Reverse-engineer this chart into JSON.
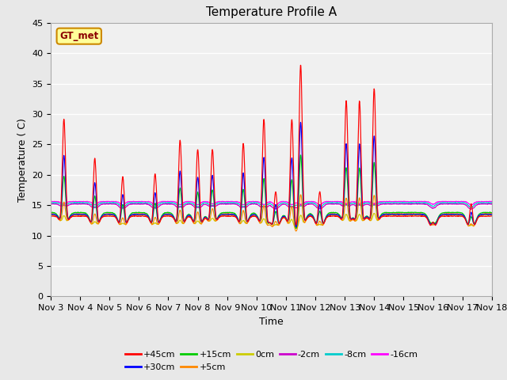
{
  "title": "Temperature Profile A",
  "xlabel": "Time",
  "ylabel": "Temperature (C)",
  "ylim": [
    0,
    45
  ],
  "series_labels": [
    "+45cm",
    "+30cm",
    "+15cm",
    "+5cm",
    "0cm",
    "-2cm",
    "-8cm",
    "-16cm"
  ],
  "series_colors": [
    "#ff0000",
    "#0000ff",
    "#00cc00",
    "#ff8800",
    "#cccc00",
    "#cc00cc",
    "#00cccc",
    "#ff00ff"
  ],
  "background_color": "#e8e8e8",
  "plot_bg_color": "#f0f0f0",
  "xtick_labels": [
    "Nov 3",
    "Nov 4",
    "Nov 5",
    "Nov 6",
    "Nov 7",
    "Nov 8",
    "Nov 9",
    "Nov 10",
    "Nov 11",
    "Nov 12",
    "Nov 13",
    "Nov 14",
    "Nov 15",
    "Nov 16",
    "Nov 17",
    "Nov 18"
  ],
  "xtick_positions": [
    3,
    4,
    5,
    6,
    7,
    8,
    9,
    10,
    11,
    12,
    13,
    14,
    15,
    16,
    17,
    18
  ],
  "title_fontsize": 11,
  "axis_fontsize": 9,
  "tick_fontsize": 8
}
